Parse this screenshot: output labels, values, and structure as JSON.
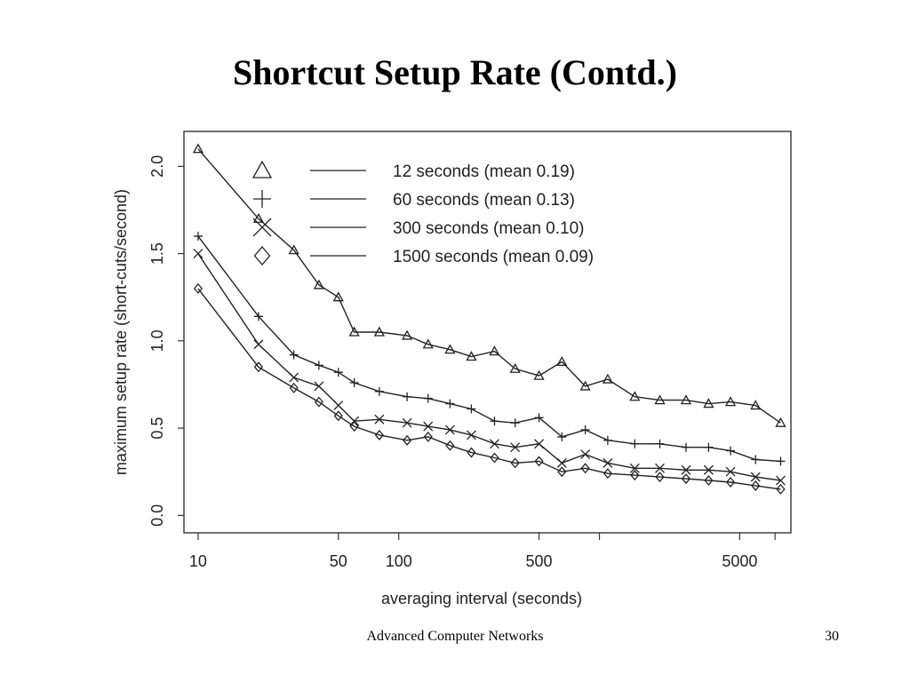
{
  "slide": {
    "title": "Shortcut Setup Rate (Contd.)",
    "footer": "Advanced Computer Networks",
    "page_number": "30"
  },
  "chart_data": {
    "type": "line",
    "xlabel": "averaging interval (seconds)",
    "ylabel": "maximum setup rate (short-cuts/second)",
    "x_scale": "log",
    "xlim": [
      8.5,
      9000
    ],
    "ylim": [
      -0.1,
      2.2
    ],
    "x_ticks": [
      10,
      50,
      100,
      500,
      5000
    ],
    "x_tick_labels": [
      "10",
      "50",
      "100",
      "500",
      "5000"
    ],
    "x_minor_ticks": [
      1000,
      7500
    ],
    "y_ticks": [
      0.0,
      0.5,
      1.0,
      1.5,
      2.0
    ],
    "y_tick_labels": [
      "0.0",
      "0.5",
      "1.0",
      "1.5",
      "2.0"
    ],
    "grid": false,
    "legend_position": "top-right",
    "x": [
      10,
      20,
      30,
      40,
      50,
      60,
      80,
      110,
      140,
      180,
      230,
      300,
      380,
      500,
      650,
      850,
      1100,
      1500,
      2000,
      2700,
      3500,
      4500,
      6000,
      8000
    ],
    "series": [
      {
        "name": "12 seconds (mean 0.19)",
        "marker": "triangle",
        "values": [
          2.1,
          1.7,
          1.52,
          1.32,
          1.25,
          1.05,
          1.05,
          1.03,
          0.98,
          0.95,
          0.91,
          0.94,
          0.84,
          0.8,
          0.88,
          0.74,
          0.78,
          0.68,
          0.66,
          0.66,
          0.64,
          0.65,
          0.63,
          0.53
        ]
      },
      {
        "name": "60 seconds (mean 0.13)",
        "marker": "plus",
        "values": [
          1.6,
          1.14,
          0.92,
          0.86,
          0.82,
          0.76,
          0.71,
          0.68,
          0.67,
          0.64,
          0.61,
          0.54,
          0.53,
          0.56,
          0.45,
          0.49,
          0.43,
          0.41,
          0.41,
          0.39,
          0.39,
          0.37,
          0.32,
          0.31
        ]
      },
      {
        "name": "300 seconds (mean 0.10)",
        "marker": "cross",
        "values": [
          1.5,
          0.98,
          0.79,
          0.74,
          0.63,
          0.54,
          0.55,
          0.53,
          0.51,
          0.49,
          0.46,
          0.41,
          0.39,
          0.41,
          0.3,
          0.35,
          0.3,
          0.27,
          0.27,
          0.26,
          0.26,
          0.25,
          0.22,
          0.2
        ]
      },
      {
        "name": "1500 seconds (mean 0.09)",
        "marker": "diamond",
        "values": [
          1.3,
          0.85,
          0.73,
          0.65,
          0.57,
          0.51,
          0.46,
          0.43,
          0.45,
          0.4,
          0.36,
          0.33,
          0.3,
          0.31,
          0.25,
          0.27,
          0.24,
          0.23,
          0.22,
          0.21,
          0.2,
          0.19,
          0.17,
          0.15
        ]
      }
    ]
  }
}
